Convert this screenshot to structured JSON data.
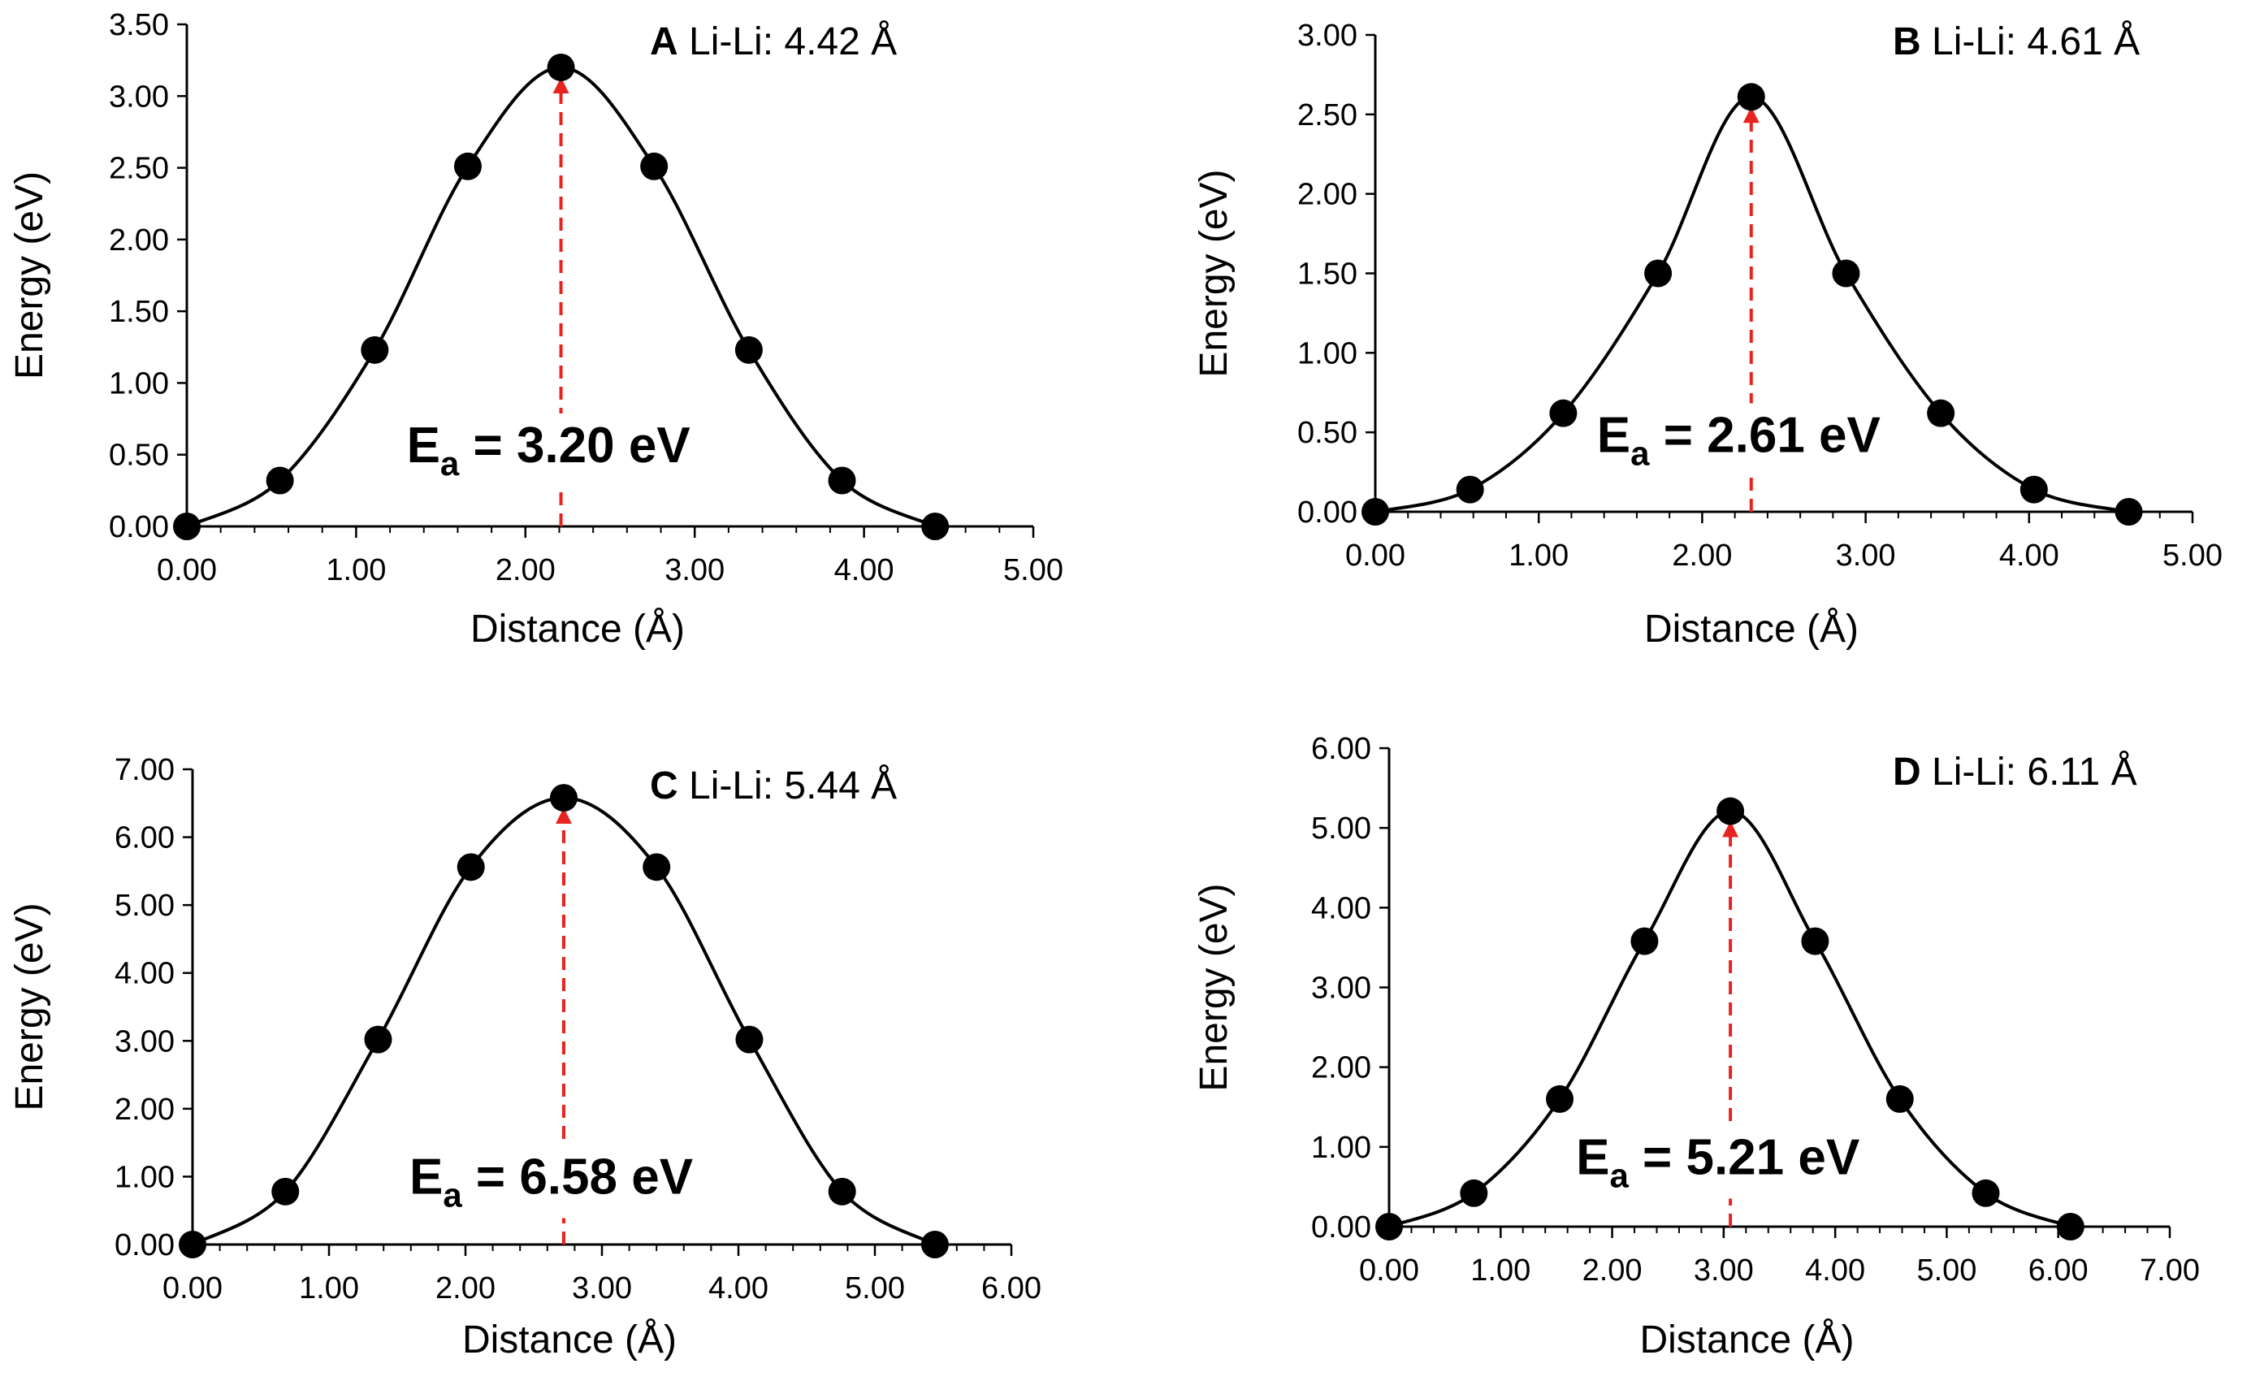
{
  "chart_data": [
    {
      "type": "line",
      "panel": "A",
      "title_letter": "A",
      "title_rest": " Li-Li: 4.42 Å",
      "xlabel": "Distance (Å)",
      "ylabel": "Energy (eV)",
      "xlim": [
        0,
        5
      ],
      "ylim": [
        0,
        3.5
      ],
      "x_ticks": [
        0,
        1,
        2,
        3,
        4,
        5
      ],
      "y_ticks": [
        0,
        0.5,
        1,
        1.5,
        2,
        2.5,
        3,
        3.5
      ],
      "x_tick_labels": [
        "0.00",
        "1.00",
        "2.00",
        "3.00",
        "4.00",
        "5.00"
      ],
      "y_tick_labels": [
        "0.00",
        "0.50",
        "1.00",
        "1.50",
        "2.00",
        "2.50",
        "3.00",
        "3.50"
      ],
      "x": [
        0.0,
        0.55,
        1.11,
        1.66,
        2.21,
        2.76,
        3.32,
        3.87,
        4.42
      ],
      "y": [
        0.0,
        0.32,
        1.23,
        2.51,
        3.2,
        2.51,
        1.23,
        0.32,
        0.0
      ],
      "barrier_x": 2.21,
      "barrier_value": 3.2,
      "ea_sub": "a",
      "ea_rest": " = 3.20 eV",
      "grid": false,
      "colors": {
        "line": "#000000",
        "marker": "#000000",
        "arrow": "#e8231f"
      }
    },
    {
      "type": "line",
      "panel": "B",
      "title_letter": "B",
      "title_rest": " Li-Li: 4.61 Å",
      "xlabel": "Distance (Å)",
      "ylabel": "Energy (eV)",
      "xlim": [
        0,
        5
      ],
      "ylim": [
        0,
        3
      ],
      "x_ticks": [
        0,
        1,
        2,
        3,
        4,
        5
      ],
      "y_ticks": [
        0,
        0.5,
        1,
        1.5,
        2,
        2.5,
        3
      ],
      "x_tick_labels": [
        "0.00",
        "1.00",
        "2.00",
        "3.00",
        "4.00",
        "5.00"
      ],
      "y_tick_labels": [
        "0.00",
        "0.50",
        "1.00",
        "1.50",
        "2.00",
        "2.50",
        "3.00"
      ],
      "x": [
        0.0,
        0.58,
        1.15,
        1.73,
        2.3,
        2.88,
        3.46,
        4.03,
        4.61
      ],
      "y": [
        0.0,
        0.14,
        0.62,
        1.5,
        2.61,
        1.5,
        0.62,
        0.14,
        0.0
      ],
      "barrier_x": 2.3,
      "barrier_value": 2.61,
      "ea_sub": "a",
      "ea_rest": " = 2.61 eV",
      "grid": false,
      "colors": {
        "line": "#000000",
        "marker": "#000000",
        "arrow": "#e8231f"
      }
    },
    {
      "type": "line",
      "panel": "C",
      "title_letter": "C",
      "title_rest": " Li-Li: 5.44 Å",
      "xlabel": "Distance (Å)",
      "ylabel": "Energy (eV)",
      "xlim": [
        0,
        6
      ],
      "ylim": [
        0,
        7
      ],
      "x_ticks": [
        0,
        1,
        2,
        3,
        4,
        5,
        6
      ],
      "y_ticks": [
        0,
        1,
        2,
        3,
        4,
        5,
        6,
        7
      ],
      "x_tick_labels": [
        "0.00",
        "1.00",
        "2.00",
        "3.00",
        "4.00",
        "5.00",
        "6.00"
      ],
      "y_tick_labels": [
        "0.00",
        "1.00",
        "2.00",
        "3.00",
        "4.00",
        "5.00",
        "6.00",
        "7.00"
      ],
      "x": [
        0.0,
        0.68,
        1.36,
        2.04,
        2.72,
        3.4,
        4.08,
        4.76,
        5.44
      ],
      "y": [
        0.0,
        0.78,
        3.02,
        5.56,
        6.58,
        5.56,
        3.02,
        0.78,
        0.0
      ],
      "barrier_x": 2.72,
      "barrier_value": 6.58,
      "ea_sub": "a",
      "ea_rest": " = 6.58 eV",
      "grid": false,
      "colors": {
        "line": "#000000",
        "marker": "#000000",
        "arrow": "#e8231f"
      }
    },
    {
      "type": "line",
      "panel": "D",
      "title_letter": "D",
      "title_rest": " Li-Li: 6.11 Å",
      "xlabel": "Distance (Å)",
      "ylabel": "Energy (eV)",
      "xlim": [
        0,
        7
      ],
      "ylim": [
        0,
        6
      ],
      "x_ticks": [
        0,
        1,
        2,
        3,
        4,
        5,
        6,
        7
      ],
      "y_ticks": [
        0,
        1,
        2,
        3,
        4,
        5,
        6
      ],
      "x_tick_labels": [
        "0.00",
        "1.00",
        "2.00",
        "3.00",
        "4.00",
        "5.00",
        "6.00",
        "7.00"
      ],
      "y_tick_labels": [
        "0.00",
        "1.00",
        "2.00",
        "3.00",
        "4.00",
        "5.00",
        "6.00"
      ],
      "x": [
        0.0,
        0.76,
        1.53,
        2.29,
        3.06,
        3.82,
        4.58,
        5.35,
        6.11
      ],
      "y": [
        0.0,
        0.42,
        1.6,
        3.58,
        5.21,
        3.58,
        1.6,
        0.42,
        0.0
      ],
      "barrier_x": 3.06,
      "barrier_value": 5.21,
      "ea_sub": "a",
      "ea_rest": " = 5.21 eV",
      "grid": false,
      "colors": {
        "line": "#000000",
        "marker": "#000000",
        "arrow": "#e8231f"
      }
    }
  ]
}
